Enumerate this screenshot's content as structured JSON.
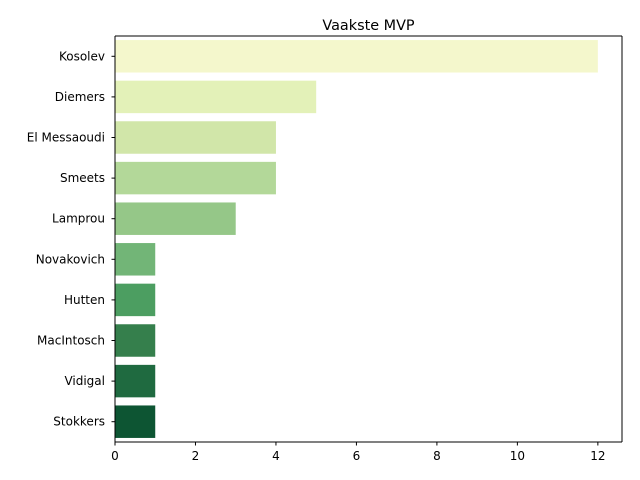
{
  "chart_data": {
    "type": "bar",
    "orientation": "horizontal",
    "title": "Vaakste MVP",
    "xlabel": "",
    "ylabel": "",
    "categories": [
      "Kosolev",
      "Diemers",
      "El Messaoudi",
      "Smeets",
      "Lamprou",
      "Novakovich",
      "Hutten",
      "MacIntosch",
      "Vidigal",
      "Stokkers"
    ],
    "values": [
      12,
      5,
      4,
      4,
      3,
      1,
      1,
      1,
      1,
      1
    ],
    "colors": [
      "#f4f7cc",
      "#e3f1b8",
      "#d1e6a9",
      "#b3d899",
      "#95c788",
      "#72b577",
      "#4c9e61",
      "#357f4c",
      "#1f6a40",
      "#0d5533"
    ],
    "xlim": [
      0,
      12.6
    ],
    "xticks": [
      0,
      2,
      4,
      6,
      8,
      10,
      12
    ],
    "grid": false,
    "legend": false
  }
}
